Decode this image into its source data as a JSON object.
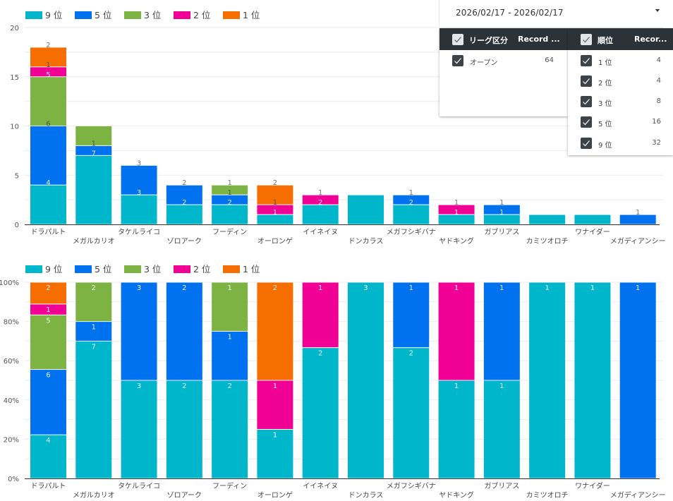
{
  "filters": {
    "date_range": {
      "value": "2026/02/17 - 2026/02/17"
    },
    "league": {
      "header_label": "リーグ区分",
      "header_metric": "Record ...",
      "header_checked": true,
      "items": [
        {
          "label": "オープン",
          "count": "64",
          "checked": true
        }
      ]
    },
    "rank": {
      "header_label": "順位",
      "header_metric": "Recor...",
      "header_checked": true,
      "items": [
        {
          "label": "1 位",
          "count": "4",
          "checked": true
        },
        {
          "label": "2 位",
          "count": "4",
          "checked": true
        },
        {
          "label": "3 位",
          "count": "8",
          "checked": true
        },
        {
          "label": "5 位",
          "count": "16",
          "checked": true
        },
        {
          "label": "9 位",
          "count": "32",
          "checked": true
        }
      ]
    }
  },
  "chart_data": [
    {
      "type": "bar",
      "stacking": "normal",
      "title": "",
      "xlabel": "",
      "ylabel": "",
      "categories": [
        "ドラパルト",
        "メガルカリオ",
        "タケルライコ",
        "ゾロアーク",
        "フーディン",
        "オーロンゲ",
        "イイネイヌ",
        "ドンカラス",
        "メガフシギバナ",
        "ヤドキング",
        "ガブリアス",
        "カミツオロチ",
        "ワナイダー",
        "メガディアンシー"
      ],
      "series": [
        {
          "name": "9 位",
          "color": "#00b6cb",
          "values": [
            4,
            7,
            3,
            2,
            2,
            1,
            2,
            3,
            2,
            1,
            1,
            1,
            1,
            0
          ]
        },
        {
          "name": "5 位",
          "color": "#0072f0",
          "values": [
            6,
            1,
            3,
            2,
            1,
            0,
            0,
            0,
            1,
            0,
            1,
            0,
            0,
            1
          ]
        },
        {
          "name": "3 位",
          "color": "#7cb342",
          "values": [
            5,
            2,
            0,
            0,
            1,
            0,
            0,
            0,
            0,
            0,
            0,
            0,
            0,
            0
          ]
        },
        {
          "name": "2 位",
          "color": "#f10096",
          "values": [
            1,
            0,
            0,
            0,
            0,
            1,
            1,
            0,
            0,
            1,
            0,
            0,
            0,
            0
          ]
        },
        {
          "name": "1 位",
          "color": "#f66d00",
          "values": [
            2,
            0,
            0,
            0,
            0,
            2,
            0,
            0,
            0,
            0,
            0,
            0,
            0,
            0
          ]
        }
      ],
      "ylim": [
        0,
        20
      ],
      "yticks": [
        0,
        5,
        10,
        15,
        20
      ],
      "ytick_labels": [
        "0",
        "5",
        "10",
        "15",
        "20"
      ],
      "grid": true,
      "legend": "top-left",
      "data_labels": "segment counts",
      "hidden_labels": [
        [
          1,
          2
        ],
        [
          7,
          0
        ],
        [
          11,
          0
        ],
        [
          12,
          0
        ]
      ]
    },
    {
      "type": "bar",
      "stacking": "percent",
      "title": "",
      "xlabel": "",
      "ylabel": "",
      "categories": [
        "ドラパルト",
        "メガルカリオ",
        "タケルライコ",
        "ゾロアーク",
        "フーディン",
        "オーロンゲ",
        "イイネイヌ",
        "ドンカラス",
        "メガフシギバナ",
        "ヤドキング",
        "ガブリアス",
        "カミツオロチ",
        "ワナイダー",
        "メガディアンシー"
      ],
      "series": [
        {
          "name": "9 位",
          "color": "#00b6cb",
          "values": [
            4,
            7,
            3,
            2,
            2,
            1,
            2,
            3,
            2,
            1,
            1,
            1,
            1,
            0
          ]
        },
        {
          "name": "5 位",
          "color": "#0072f0",
          "values": [
            6,
            1,
            3,
            2,
            1,
            0,
            0,
            0,
            1,
            0,
            1,
            0,
            0,
            1
          ]
        },
        {
          "name": "3 位",
          "color": "#7cb342",
          "values": [
            5,
            2,
            0,
            0,
            1,
            0,
            0,
            0,
            0,
            0,
            0,
            0,
            0,
            0
          ]
        },
        {
          "name": "2 位",
          "color": "#f10096",
          "values": [
            1,
            0,
            0,
            0,
            0,
            1,
            1,
            0,
            0,
            1,
            0,
            0,
            0,
            0
          ]
        },
        {
          "name": "1 位",
          "color": "#f66d00",
          "values": [
            2,
            0,
            0,
            0,
            0,
            2,
            0,
            0,
            0,
            0,
            0,
            0,
            0,
            0
          ]
        }
      ],
      "ylim": [
        0,
        100
      ],
      "yticks": [
        0,
        20,
        40,
        60,
        80,
        100
      ],
      "ytick_labels": [
        "0%",
        "20%",
        "40%",
        "60%",
        "80%",
        "100%"
      ],
      "grid": true,
      "legend": "top-left",
      "data_labels": "segment counts",
      "hidden_labels": []
    }
  ]
}
